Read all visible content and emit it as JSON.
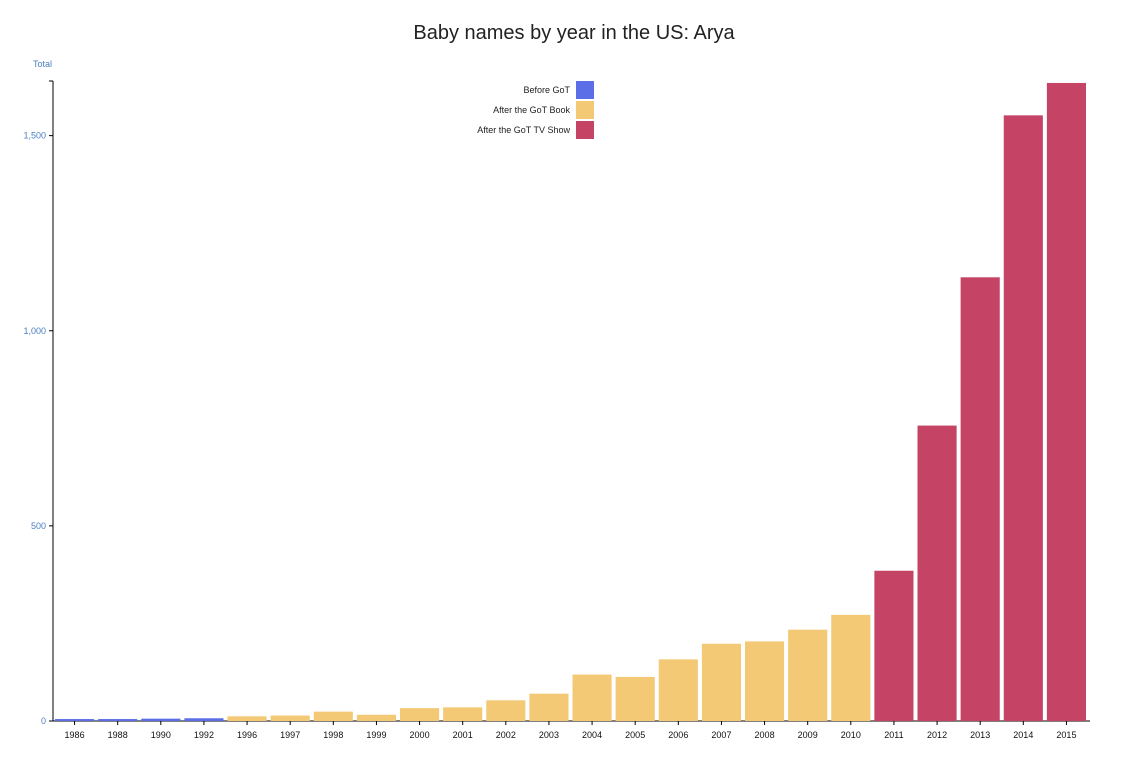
{
  "chart_data": {
    "type": "bar",
    "title": "Baby names by year in the US: Arya",
    "ylabel": "Total",
    "ylim": [
      0,
      1640
    ],
    "yticks": [
      0,
      500,
      1000,
      1500
    ],
    "ytick_labels": [
      "0",
      "500",
      "1,000",
      "1,500"
    ],
    "grid": false,
    "legend_position": "top-center",
    "categories": [
      "1986",
      "1988",
      "1990",
      "1992",
      "1996",
      "1997",
      "1998",
      "1999",
      "2000",
      "2001",
      "2002",
      "2003",
      "2004",
      "2005",
      "2006",
      "2007",
      "2008",
      "2009",
      "2010",
      "2011",
      "2012",
      "2013",
      "2014",
      "2015"
    ],
    "values": [
      5,
      5,
      6,
      7,
      12,
      14,
      24,
      16,
      33,
      35,
      53,
      70,
      119,
      113,
      158,
      198,
      204,
      234,
      272,
      385,
      757,
      1137,
      1552,
      1635
    ],
    "groups": [
      "Before GoT",
      "Before GoT",
      "Before GoT",
      "Before GoT",
      "After the GoT Book",
      "After the GoT Book",
      "After the GoT Book",
      "After the GoT Book",
      "After the GoT Book",
      "After the GoT Book",
      "After the GoT Book",
      "After the GoT Book",
      "After the GoT Book",
      "After the GoT Book",
      "After the GoT Book",
      "After the GoT Book",
      "After the GoT Book",
      "After the GoT Book",
      "After the GoT Book",
      "After the GoT TV Show",
      "After the GoT TV Show",
      "After the GoT TV Show",
      "After the GoT TV Show",
      "After the GoT TV Show"
    ],
    "legend": [
      {
        "name": "Before GoT",
        "color": "#5b6ee8"
      },
      {
        "name": "After the GoT Book",
        "color": "#f3c976"
      },
      {
        "name": "After the GoT TV Show",
        "color": "#c54466"
      }
    ],
    "axis_label_color": "#4a7fc0"
  }
}
